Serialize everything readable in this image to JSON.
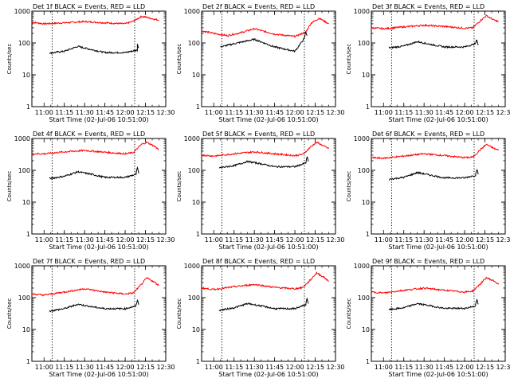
{
  "figure": {
    "xlabel": "Start Time (02-Jul-06 10:51:00)",
    "ylabel": "Counts/sec"
  },
  "chart_data": [
    {
      "type": "line",
      "title": "Det 1f BLACK = Events, RED = LLD",
      "xlabel": "Start Time (02-Jul-06 10:51:00)",
      "ylabel": "Counts/sec",
      "xticks": [
        "11:00",
        "11:15",
        "11:30",
        "11:45",
        "12:00",
        "12:15",
        "12:30"
      ],
      "yticks": [
        1,
        10,
        100,
        1000
      ],
      "ylog": true,
      "ylim": [
        1,
        1000
      ],
      "series": [
        {
          "color": "#ff0000",
          "x": [
            "10:51",
            "11:00",
            "11:15",
            "11:30",
            "11:45",
            "12:00",
            "12:06",
            "12:12",
            "12:15",
            "12:20",
            "12:25"
          ],
          "y": [
            450,
            400,
            430,
            470,
            430,
            400,
            480,
            680,
            650,
            580,
            520
          ]
        },
        {
          "color": "#000000",
          "x": [
            "11:04",
            "11:15",
            "11:25",
            "11:35",
            "11:45",
            "12:00",
            "12:09",
            "12:09",
            "12:10"
          ],
          "y": [
            48,
            55,
            78,
            62,
            50,
            50,
            60,
            95,
            70
          ]
        }
      ]
    },
    {
      "type": "line",
      "title": "Det 2f BLACK = Events, RED = LLD",
      "xlabel": "Start Time (02-Jul-06 10:51:00)",
      "ylabel": "Counts/sec",
      "xticks": [
        "11:00",
        "11:15",
        "11:30",
        "11:45",
        "12:00",
        "12:15",
        "12:30"
      ],
      "yticks": [
        1,
        10,
        100,
        1000
      ],
      "ylog": true,
      "ylim": [
        1,
        1000
      ],
      "series": [
        {
          "color": "#ff0000",
          "x": [
            "10:51",
            "11:00",
            "11:10",
            "11:20",
            "11:30",
            "11:45",
            "12:00",
            "12:08",
            "12:12",
            "12:18",
            "12:25"
          ],
          "y": [
            240,
            200,
            170,
            210,
            280,
            190,
            160,
            220,
            420,
            600,
            400
          ]
        },
        {
          "color": "#000000",
          "x": [
            "11:05",
            "11:15",
            "11:30",
            "11:45",
            "12:00",
            "12:07",
            "12:08",
            "12:09"
          ],
          "y": [
            75,
            95,
            130,
            75,
            55,
            140,
            230,
            170
          ]
        }
      ]
    },
    {
      "type": "line",
      "title": "Det 3f BLACK = Events, RED = LLD",
      "xlabel": "Start Time (02-Jul-06 10:51:00)",
      "ylabel": "Counts/sec",
      "xticks": [
        "11:00",
        "11:15",
        "11:30",
        "11:45",
        "12:00",
        "12:15",
        "12:30"
      ],
      "yticks": [
        1,
        10,
        100,
        1000
      ],
      "ylog": true,
      "ylim": [
        1,
        1000
      ],
      "series": [
        {
          "color": "#ff0000",
          "x": [
            "10:51",
            "11:00",
            "11:15",
            "11:30",
            "11:45",
            "12:00",
            "12:06",
            "12:12",
            "12:16",
            "12:22",
            "12:25"
          ],
          "y": [
            300,
            280,
            320,
            360,
            330,
            290,
            300,
            520,
            720,
            520,
            470
          ]
        },
        {
          "color": "#000000",
          "x": [
            "11:04",
            "11:15",
            "11:25",
            "11:35",
            "11:45",
            "12:00",
            "12:08",
            "12:09",
            "12:10"
          ],
          "y": [
            70,
            80,
            110,
            90,
            75,
            75,
            95,
            130,
            85
          ]
        }
      ]
    },
    {
      "type": "line",
      "title": "Det 4f BLACK = Events, RED = LLD",
      "xlabel": "Start Time (02-Jul-06 10:51:00)",
      "ylabel": "Counts/sec",
      "xticks": [
        "11:00",
        "11:15",
        "11:30",
        "11:45",
        "12:00",
        "12:15",
        "12:30"
      ],
      "yticks": [
        1,
        10,
        100,
        1000
      ],
      "ylog": true,
      "ylim": [
        1,
        1000
      ],
      "series": [
        {
          "color": "#ff0000",
          "x": [
            "10:51",
            "11:00",
            "11:15",
            "11:30",
            "11:45",
            "12:00",
            "12:06",
            "12:12",
            "12:16",
            "12:22",
            "12:25"
          ],
          "y": [
            330,
            330,
            380,
            420,
            370,
            330,
            360,
            650,
            760,
            560,
            440
          ]
        },
        {
          "color": "#000000",
          "x": [
            "11:04",
            "11:15",
            "11:25",
            "11:35",
            "11:45",
            "12:00",
            "12:08",
            "12:09",
            "12:10"
          ],
          "y": [
            55,
            65,
            90,
            75,
            60,
            60,
            75,
            120,
            80
          ]
        }
      ]
    },
    {
      "type": "line",
      "title": "Det 5f BLACK = Events, RED = LLD",
      "xlabel": "Start Time (02-Jul-06 10:51:00)",
      "ylabel": "Counts/sec",
      "xticks": [
        "11:00",
        "11:15",
        "11:30",
        "11:45",
        "12:00",
        "12:15",
        "12:30"
      ],
      "yticks": [
        1,
        10,
        100,
        1000
      ],
      "ylog": true,
      "ylim": [
        1,
        1000
      ],
      "series": [
        {
          "color": "#ff0000",
          "x": [
            "10:51",
            "11:00",
            "11:15",
            "11:30",
            "11:45",
            "12:00",
            "12:06",
            "12:12",
            "12:16",
            "12:22",
            "12:25"
          ],
          "y": [
            300,
            280,
            330,
            380,
            330,
            290,
            320,
            560,
            760,
            560,
            480
          ]
        },
        {
          "color": "#000000",
          "x": [
            "11:04",
            "11:15",
            "11:25",
            "11:35",
            "11:45",
            "12:00",
            "12:08",
            "12:09",
            "12:10"
          ],
          "y": [
            120,
            140,
            190,
            160,
            130,
            130,
            170,
            260,
            190
          ]
        }
      ]
    },
    {
      "type": "line",
      "title": "Det 6f BLACK = Events, RED = LLD",
      "xlabel": "Start Time (02-Jul-06 10:51:00)",
      "ylabel": "Counts/sec",
      "xticks": [
        "11:00",
        "11:15",
        "11:30",
        "11:45",
        "12:00",
        "12:15",
        "12:30"
      ],
      "yticks": [
        1,
        10,
        100,
        1000
      ],
      "ylog": true,
      "ylim": [
        1,
        1000
      ],
      "series": [
        {
          "color": "#ff0000",
          "x": [
            "10:51",
            "11:00",
            "11:15",
            "11:30",
            "11:45",
            "12:00",
            "12:06",
            "12:12",
            "12:16",
            "12:22",
            "12:25"
          ],
          "y": [
            250,
            240,
            280,
            330,
            290,
            250,
            260,
            460,
            650,
            480,
            430
          ]
        },
        {
          "color": "#000000",
          "x": [
            "11:04",
            "11:15",
            "11:25",
            "11:35",
            "11:45",
            "12:00",
            "12:08",
            "12:09",
            "12:10"
          ],
          "y": [
            52,
            60,
            85,
            70,
            58,
            58,
            70,
            110,
            75
          ]
        }
      ]
    },
    {
      "type": "line",
      "title": "Det 7f BLACK = Events, RED = LLD",
      "xlabel": "Start Time (02-Jul-06 10:51:00)",
      "ylabel": "Counts/sec",
      "xticks": [
        "11:00",
        "11:15",
        "11:30",
        "11:45",
        "12:00",
        "12:15",
        "12:30"
      ],
      "yticks": [
        1,
        10,
        100,
        1000
      ],
      "ylog": true,
      "ylim": [
        1,
        1000
      ],
      "series": [
        {
          "color": "#ff0000",
          "x": [
            "10:51",
            "11:00",
            "11:15",
            "11:30",
            "11:45",
            "12:00",
            "12:06",
            "12:12",
            "12:16",
            "12:22",
            "12:25"
          ],
          "y": [
            130,
            120,
            150,
            190,
            150,
            130,
            140,
            260,
            420,
            300,
            240
          ]
        },
        {
          "color": "#000000",
          "x": [
            "11:04",
            "11:15",
            "11:25",
            "11:35",
            "11:45",
            "12:00",
            "12:08",
            "12:09",
            "12:10"
          ],
          "y": [
            38,
            45,
            62,
            52,
            45,
            45,
            55,
            85,
            60
          ]
        }
      ]
    },
    {
      "type": "line",
      "title": "Det 8f BLACK = Events, RED = LLD",
      "xlabel": "Start Time (02-Jul-06 10:51:00)",
      "ylabel": "Counts/sec",
      "xticks": [
        "11:00",
        "11:15",
        "11:30",
        "11:45",
        "12:00",
        "12:15",
        "12:30"
      ],
      "yticks": [
        1,
        10,
        100,
        1000
      ],
      "ylog": true,
      "ylim": [
        1,
        1000
      ],
      "series": [
        {
          "color": "#ff0000",
          "x": [
            "10:51",
            "11:00",
            "11:15",
            "11:30",
            "11:45",
            "12:00",
            "12:06",
            "12:12",
            "12:16",
            "12:22",
            "12:25"
          ],
          "y": [
            200,
            180,
            220,
            260,
            210,
            190,
            210,
            380,
            600,
            420,
            320
          ]
        },
        {
          "color": "#000000",
          "x": [
            "11:04",
            "11:15",
            "11:25",
            "11:35",
            "11:45",
            "12:00",
            "12:08",
            "12:09",
            "12:10"
          ],
          "y": [
            40,
            48,
            65,
            55,
            45,
            45,
            60,
            95,
            65
          ]
        }
      ]
    },
    {
      "type": "line",
      "title": "Det 9f BLACK = Events, RED = LLD",
      "xlabel": "Start Time (02-Jul-06 10:51:00)",
      "ylabel": "Counts/sec",
      "xticks": [
        "11:00",
        "11:15",
        "11:30",
        "11:45",
        "12:00",
        "12:15",
        "12:30"
      ],
      "yticks": [
        1,
        10,
        100,
        1000
      ],
      "ylog": true,
      "ylim": [
        1,
        1000
      ],
      "series": [
        {
          "color": "#ff0000",
          "x": [
            "10:51",
            "11:00",
            "11:15",
            "11:30",
            "11:45",
            "12:00",
            "12:06",
            "12:12",
            "12:16",
            "12:22",
            "12:25"
          ],
          "y": [
            150,
            140,
            170,
            200,
            170,
            150,
            160,
            280,
            420,
            330,
            260
          ]
        },
        {
          "color": "#000000",
          "x": [
            "11:04",
            "11:15",
            "11:25",
            "11:35",
            "11:45",
            "12:00",
            "12:08",
            "12:09",
            "12:10"
          ],
          "y": [
            42,
            48,
            65,
            55,
            46,
            46,
            55,
            88,
            62
          ]
        }
      ]
    }
  ]
}
